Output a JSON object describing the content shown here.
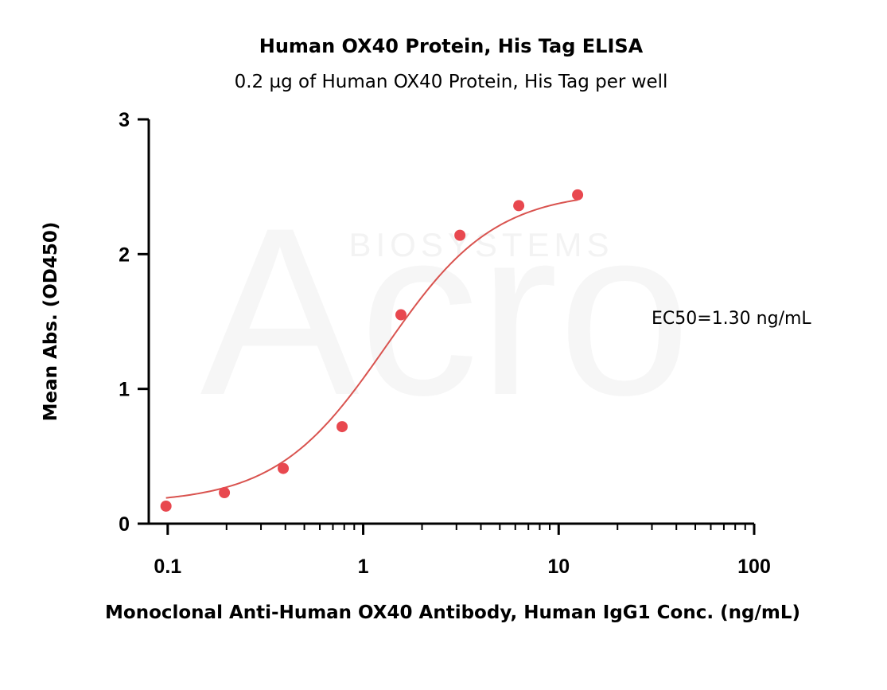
{
  "chart_data": {
    "type": "scatter",
    "title": "Human OX40 Protein, His Tag ELISA",
    "subtitle": "0.2 µg of Human OX40 Protein, His Tag per well",
    "xlabel": "Monoclonal Anti-Human OX40 Antibody, Human IgG1 Conc. (ng/mL)",
    "ylabel": "Mean Abs. (OD450)",
    "x_scale": "log",
    "xlim": [
      0.08,
      100
    ],
    "ylim": [
      0,
      3
    ],
    "x_ticks": [
      0.1,
      1,
      10,
      100
    ],
    "x_tick_labels": [
      "0.1",
      "1",
      "10",
      "100"
    ],
    "y_ticks": [
      0,
      1,
      2,
      3
    ],
    "y_tick_labels": [
      "0",
      "1",
      "2",
      "3"
    ],
    "grid": false,
    "series": [
      {
        "x": [
          0.098,
          0.195,
          0.39,
          0.78,
          1.56,
          3.125,
          6.25,
          12.5
        ],
        "y": [
          0.13,
          0.23,
          0.41,
          0.72,
          1.55,
          2.14,
          2.36,
          2.44
        ],
        "color": "#e8484f"
      }
    ],
    "fit": {
      "model": "4PL",
      "bottom": 0.15,
      "top": 2.47,
      "ec50": 1.3,
      "hill": 1.55,
      "color": "#d9534f"
    },
    "annotation": "EC50=1.30 ng/mL",
    "watermark": {
      "logo_text": "Acro",
      "text": "BIOSYSTEMS"
    }
  }
}
